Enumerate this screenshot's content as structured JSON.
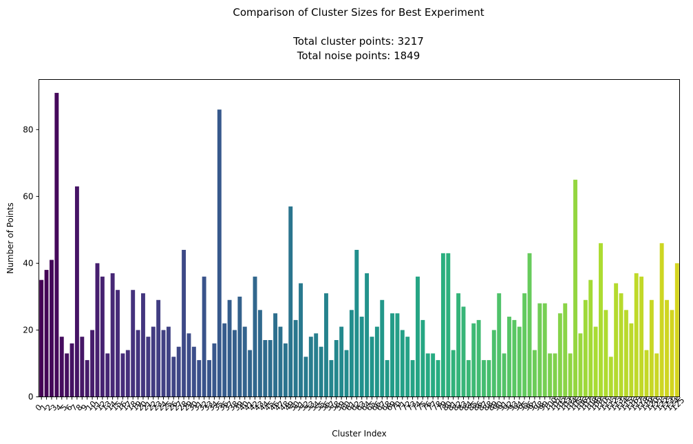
{
  "chart_data": {
    "type": "bar",
    "title_lines": [
      "Comparison of Cluster Sizes for Best Experiment",
      "",
      "Total cluster points: 3217",
      "Total noise points: 1849"
    ],
    "xlabel": "Cluster Index",
    "ylabel": "Number of Points",
    "ylim": [
      0,
      95
    ],
    "yticks": [
      0,
      20,
      40,
      60,
      80
    ],
    "xtick_rotation": -45,
    "colormap": "viridis",
    "colors": {
      "start": "#440154",
      "mid": "#21918c",
      "end": "#d5d51f"
    },
    "grid": false,
    "legend": "none",
    "categories": [
      "0",
      "1",
      "2",
      "3",
      "4",
      "5",
      "6",
      "7",
      "8",
      "9",
      "10",
      "11",
      "12",
      "13",
      "14",
      "15",
      "16",
      "17",
      "18",
      "19",
      "20",
      "21",
      "22",
      "23",
      "24",
      "25",
      "26",
      "27",
      "28",
      "29",
      "30",
      "31",
      "32",
      "33",
      "34",
      "35",
      "36",
      "37",
      "38",
      "39",
      "40",
      "41",
      "42",
      "43",
      "44",
      "45",
      "46",
      "47",
      "48",
      "49",
      "50",
      "51",
      "52",
      "53",
      "54",
      "55",
      "56",
      "57",
      "58",
      "59",
      "60",
      "61",
      "62",
      "63",
      "64",
      "65",
      "66",
      "67",
      "68",
      "69",
      "70",
      "71",
      "72",
      "73",
      "74",
      "75",
      "76",
      "77",
      "78",
      "79",
      "80",
      "81",
      "82",
      "83",
      "84",
      "85",
      "86",
      "87",
      "88",
      "89",
      "90",
      "91",
      "92",
      "93",
      "94",
      "95",
      "96",
      "97",
      "98",
      "99",
      "100",
      "101",
      "102",
      "103",
      "104",
      "105",
      "106",
      "107",
      "108",
      "109",
      "110",
      "111",
      "112",
      "113",
      "114",
      "115",
      "116",
      "117",
      "118",
      "119",
      "120",
      "121",
      "122",
      "123",
      "124",
      "125"
    ],
    "values": [
      35,
      38,
      41,
      91,
      18,
      13,
      16,
      63,
      18,
      11,
      20,
      40,
      36,
      13,
      37,
      32,
      13,
      14,
      32,
      20,
      31,
      18,
      21,
      29,
      20,
      21,
      12,
      15,
      44,
      19,
      15,
      11,
      36,
      11,
      16,
      86,
      22,
      29,
      20,
      30,
      21,
      14,
      36,
      26,
      17,
      17,
      25,
      21,
      16,
      57,
      23,
      34,
      12,
      18,
      19,
      15,
      31,
      11,
      17,
      21,
      14,
      26,
      44,
      24,
      37,
      18,
      21,
      29,
      11,
      25,
      25,
      20,
      18,
      11,
      36,
      23,
      13,
      13,
      11,
      43,
      43,
      14,
      31,
      27,
      11,
      22,
      23,
      11,
      11,
      20,
      31,
      13,
      24,
      23,
      21,
      31,
      43,
      14,
      28,
      28,
      13,
      13,
      25,
      28,
      13,
      65,
      19,
      29,
      35,
      21,
      46,
      26,
      12,
      34,
      31,
      26,
      22,
      37,
      36,
      14,
      29,
      13,
      46,
      29,
      26,
      40
    ]
  }
}
